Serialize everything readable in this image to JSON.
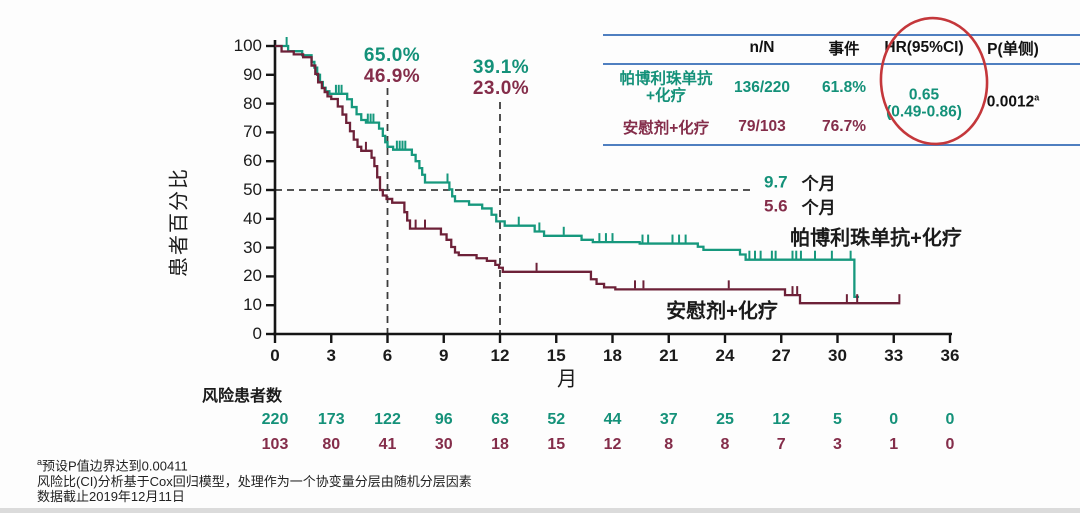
{
  "colors": {
    "treatment": "#16987d",
    "placebo": "#6d2138",
    "treatment_text": "#149179",
    "placebo_text": "#842d4a",
    "table_line_blue": "#4f7fc0",
    "ellipse_red": "#c4373b",
    "axis": "#151515",
    "dash": "#3c3c3c"
  },
  "chart_data": {
    "type": "line",
    "subtype": "kaplan-meier-step",
    "title": "",
    "xlabel": "月",
    "ylabel": "患者百分比",
    "xlim": [
      0,
      36
    ],
    "ylim": [
      0,
      100
    ],
    "x_ticks": [
      "0",
      "3",
      "6",
      "9",
      "12",
      "15",
      "18",
      "21",
      "24",
      "27",
      "30",
      "33",
      "36"
    ],
    "y_ticks": [
      "0",
      "10",
      "20",
      "30",
      "40",
      "50",
      "60",
      "70",
      "80",
      "90",
      "100"
    ],
    "grid": false,
    "reference_lines": {
      "horizontal_pct": 50,
      "vertical_months": [
        6,
        12
      ]
    },
    "series": [
      {
        "name": "帕博利珠单抗+化疗",
        "color_key": "treatment",
        "rate_6mo": "65.0%",
        "rate_12mo": "39.1%",
        "median": "9.7",
        "steps": [
          [
            0,
            100
          ],
          [
            0.7,
            98.2
          ],
          [
            1.45,
            96.8
          ],
          [
            1.95,
            94.5
          ],
          [
            2.1,
            92.5
          ],
          [
            2.25,
            90
          ],
          [
            2.4,
            87.5
          ],
          [
            2.55,
            85.5
          ],
          [
            2.7,
            84.3
          ],
          [
            2.9,
            83.4
          ],
          [
            3.85,
            81.5
          ],
          [
            4.1,
            78.8
          ],
          [
            4.35,
            76.3
          ],
          [
            4.6,
            74.3
          ],
          [
            4.85,
            73.4
          ],
          [
            5.55,
            71.3
          ],
          [
            5.75,
            68.8
          ],
          [
            5.88,
            66.6
          ],
          [
            6.0,
            65.0
          ],
          [
            6.3,
            64.0
          ],
          [
            7.3,
            62.2
          ],
          [
            7.5,
            60.0
          ],
          [
            7.7,
            57.6
          ],
          [
            7.85,
            55.3
          ],
          [
            8.0,
            52.6
          ],
          [
            9.3,
            50.2
          ],
          [
            9.45,
            47.8
          ],
          [
            9.6,
            46.1
          ],
          [
            10.35,
            44.9
          ],
          [
            11.05,
            43.6
          ],
          [
            11.55,
            41.4
          ],
          [
            11.8,
            39.1
          ],
          [
            12.25,
            37.6
          ],
          [
            13.85,
            35.6
          ],
          [
            14.35,
            34.1
          ],
          [
            16.35,
            32.7
          ],
          [
            16.95,
            31.9
          ],
          [
            19.45,
            31.4
          ],
          [
            22.55,
            30.3
          ],
          [
            22.85,
            29.2
          ],
          [
            24.8,
            27.6
          ],
          [
            25.1,
            25.8
          ],
          [
            30.9,
            12.9
          ]
        ],
        "end_month": 31.15,
        "censors": [
          [
            0.62,
            100
          ],
          [
            3.25,
            83.4
          ],
          [
            3.4,
            83.4
          ],
          [
            3.55,
            83.4
          ],
          [
            4.95,
            73.4
          ],
          [
            5.1,
            73.4
          ],
          [
            5.25,
            73.4
          ],
          [
            6.5,
            64
          ],
          [
            6.65,
            64
          ],
          [
            6.8,
            64
          ],
          [
            6.95,
            64
          ],
          [
            9.2,
            52.6
          ],
          [
            13.0,
            37.6
          ],
          [
            14.1,
            35.6
          ],
          [
            15.4,
            34.1
          ],
          [
            17.3,
            31.9
          ],
          [
            17.65,
            31.9
          ],
          [
            18.0,
            31.9
          ],
          [
            19.6,
            31.4
          ],
          [
            19.9,
            31.4
          ],
          [
            21.2,
            31.4
          ],
          [
            21.55,
            31.4
          ],
          [
            21.9,
            31.4
          ],
          [
            25.3,
            25.8
          ],
          [
            25.6,
            25.8
          ],
          [
            25.9,
            25.8
          ],
          [
            26.5,
            25.8
          ],
          [
            26.7,
            25.8
          ],
          [
            27.6,
            25.8
          ],
          [
            27.8,
            25.8
          ],
          [
            28.05,
            25.8
          ],
          [
            28.8,
            25.8
          ],
          [
            29.7,
            25.8
          ],
          [
            30.7,
            25.8
          ]
        ]
      },
      {
        "name": "安慰剂+化疗",
        "color_key": "placebo",
        "rate_6mo": "46.9%",
        "rate_12mo": "23.0%",
        "median": "5.6",
        "steps": [
          [
            0,
            100
          ],
          [
            0.35,
            98.1
          ],
          [
            1.0,
            97.1
          ],
          [
            1.5,
            96.1
          ],
          [
            1.95,
            93.2
          ],
          [
            2.15,
            90.3
          ],
          [
            2.3,
            87.4
          ],
          [
            2.5,
            85.4
          ],
          [
            2.65,
            84.0
          ],
          [
            2.8,
            82.5
          ],
          [
            3.0,
            81.6
          ],
          [
            3.35,
            79.0
          ],
          [
            3.6,
            76.2
          ],
          [
            3.8,
            73.3
          ],
          [
            4.0,
            70.4
          ],
          [
            4.2,
            67.5
          ],
          [
            4.4,
            65.0
          ],
          [
            4.6,
            63.6
          ],
          [
            5.15,
            61.2
          ],
          [
            5.3,
            58.3
          ],
          [
            5.45,
            54.4
          ],
          [
            5.6,
            50.0
          ],
          [
            5.75,
            48.1
          ],
          [
            5.95,
            46.9
          ],
          [
            6.25,
            45.6
          ],
          [
            6.9,
            42.3
          ],
          [
            7.05,
            39.4
          ],
          [
            7.2,
            36.6
          ],
          [
            8.85,
            34.6
          ],
          [
            9.15,
            32.7
          ],
          [
            9.4,
            30.2
          ],
          [
            9.6,
            28.3
          ],
          [
            9.8,
            27.4
          ],
          [
            10.75,
            26.3
          ],
          [
            11.3,
            25.4
          ],
          [
            11.75,
            24.0
          ],
          [
            11.95,
            23.0
          ],
          [
            12.15,
            21.6
          ],
          [
            16.85,
            19.0
          ],
          [
            17.15,
            17.4
          ],
          [
            17.55,
            16.2
          ],
          [
            18.15,
            15.5
          ],
          [
            27.2,
            13.5
          ],
          [
            28.0,
            10.7
          ]
        ],
        "end_month": 33.35,
        "censors": [
          [
            4.85,
            63.6
          ],
          [
            7.5,
            36.6
          ],
          [
            8.0,
            36.6
          ],
          [
            13.95,
            21.6
          ],
          [
            19.2,
            15.5
          ],
          [
            19.65,
            15.5
          ],
          [
            24.2,
            15.5
          ],
          [
            27.6,
            13.5
          ],
          [
            27.85,
            13.5
          ],
          [
            30.5,
            10.7
          ],
          [
            31.05,
            10.7
          ],
          [
            33.3,
            10.7
          ]
        ]
      }
    ]
  },
  "annotations": {
    "pct6_treatment": "65.0%",
    "pct6_placebo": "46.9%",
    "pct12_treatment": "39.1%",
    "pct12_placebo": "23.0%",
    "median_treatment": "9.7",
    "median_placebo": "5.6",
    "median_unit_1": "个月",
    "median_unit_2": "个月",
    "label_treatment": "帕博利珠单抗+化疗",
    "label_placebo": "安慰剂+化疗"
  },
  "summary_table": {
    "headers": {
      "n_N": "n/N",
      "events": "事件",
      "hr": "HR(95%CI)",
      "p": "P(单侧)"
    },
    "row_treatment": {
      "label_line1": "帕博利珠单抗",
      "label_line2": "+化疗",
      "n_N": "136/220",
      "events": "61.8%"
    },
    "row_placebo": {
      "label": "安慰剂+化疗",
      "n_N": "79/103",
      "events": "76.7%"
    },
    "hr_value": "0.65",
    "hr_ci": "(0.49-0.86)",
    "p_value": "0.0012",
    "p_sup": "a"
  },
  "risk_table": {
    "label": "风险患者数",
    "treatment": [
      "220",
      "173",
      "122",
      "96",
      "63",
      "52",
      "44",
      "37",
      "25",
      "12",
      "5",
      "0",
      "0"
    ],
    "placebo": [
      "103",
      "80",
      "41",
      "30",
      "18",
      "15",
      "12",
      "8",
      "8",
      "7",
      "3",
      "1",
      "0"
    ]
  },
  "footnotes": {
    "sup1": "a",
    "line1": "预设P值边界达到0.00411",
    "line2": "风险比(CI)分析基于Cox回归模型，处理作为一个协变量分层由随机分层因素",
    "line3": "数据截止2019年12月11日"
  }
}
